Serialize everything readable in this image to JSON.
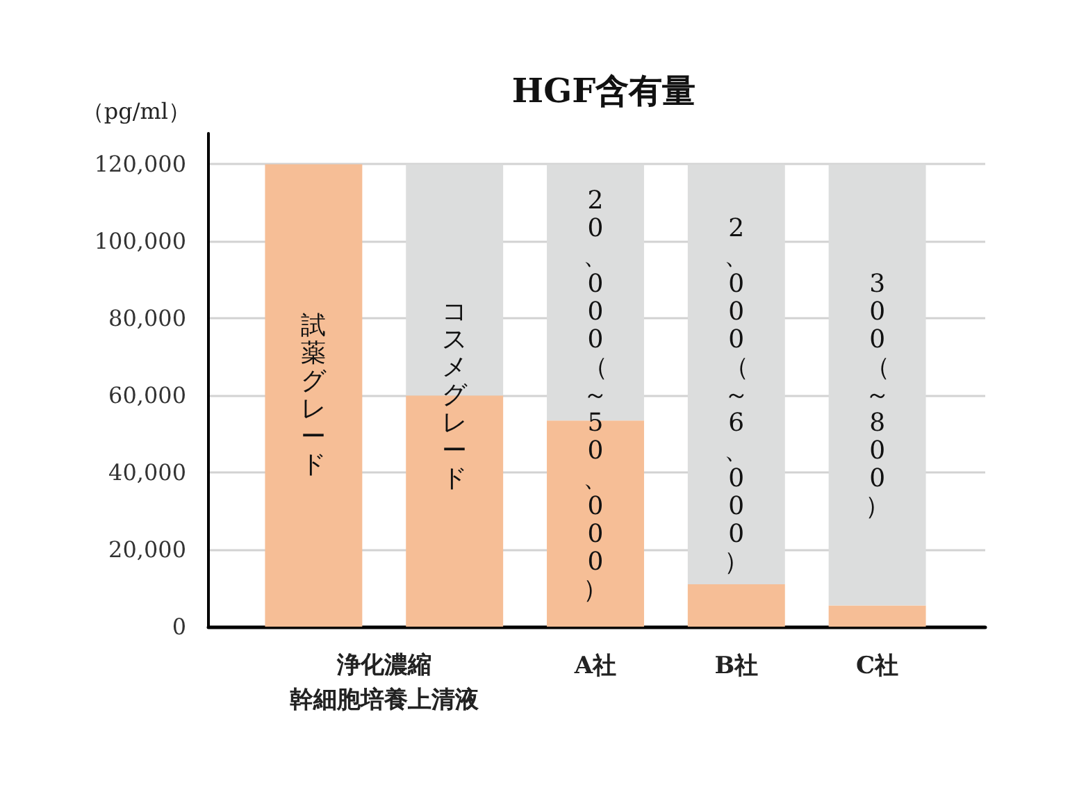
{
  "chart_data": {
    "type": "bar",
    "title": "HGF含有量",
    "ylabel": "（pg/ml）",
    "categories": [
      null,
      null,
      "A社",
      "B社",
      "C社"
    ],
    "stacked": true,
    "series": [
      {
        "color": "#f6be96",
        "values": [
          120000,
          60000,
          53500,
          11000,
          5500
        ],
        "value_labels": [
          "試薬グレード",
          "コスメグレード",
          null,
          null,
          null
        ]
      },
      {
        "color": "#dcdddd",
        "values": [
          null,
          60000,
          66500,
          109000,
          114500
        ]
      }
    ],
    "ylim": [
      0,
      128000
    ],
    "yticks": [
      {
        "value": 0,
        "label": "0"
      },
      {
        "value": 20000,
        "label": "20,000"
      },
      {
        "value": 40000,
        "label": "40,000"
      },
      {
        "value": 60000,
        "label": "60,000"
      },
      {
        "value": 80000,
        "label": "80,000"
      },
      {
        "value": 100000,
        "label": "100,000"
      },
      {
        "value": 120000,
        "label": "120,000"
      }
    ],
    "grid": "y",
    "annotations": [
      "浄化濃縮",
      "幹細胞培養上清液",
      "20、000（～50、000）",
      "2、000（～6、000）",
      "300（～800）"
    ]
  }
}
